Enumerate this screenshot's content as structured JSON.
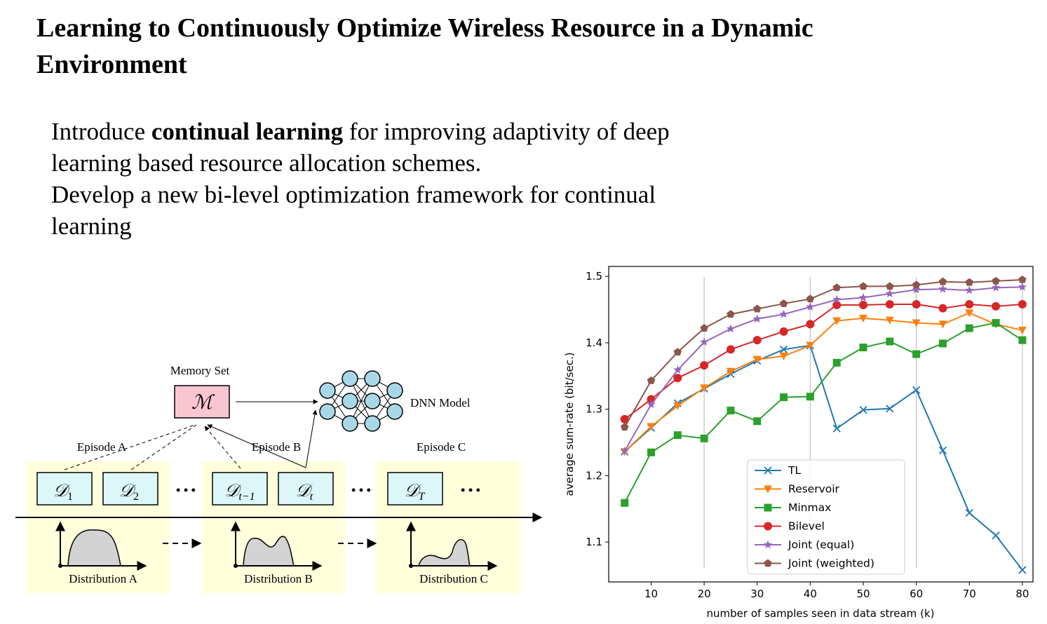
{
  "slide": {
    "title_lines": [
      "Learning to Continuously Optimize Wireless Resource in a Dynamic",
      "Environment"
    ],
    "bullet1": {
      "prefix": "Introduce ",
      "bold": "continual learning",
      "suffix": " for improving adaptivity of deep",
      "line2": "learning based resource allocation schemes."
    },
    "bullet2": {
      "line1": "Develop a new bi-level optimization framework for continual",
      "line2": "learning"
    }
  },
  "diagram": {
    "memory_label": "Memory Set",
    "memory_symbol": "ℳ",
    "dnn_label": "DNN Model",
    "episodes": [
      "Episode A",
      "Episode B",
      "Episode C"
    ],
    "boxes": [
      {
        "main": "𝒟",
        "sub": "1"
      },
      {
        "main": "𝒟",
        "sub": "2"
      },
      {
        "main": "𝒟",
        "sub": "t−1"
      },
      {
        "main": "𝒟",
        "sub": "t"
      },
      {
        "main": "𝒟",
        "sub": "T"
      }
    ],
    "ellipsis": "• • •",
    "distributions": [
      "Distribution A",
      "Distribution B",
      "Distribution C"
    ],
    "colors": {
      "episode_bg": "#ffffdc",
      "box_fill": "#ddf7f9",
      "memory_fill": "#f9c5d1",
      "neuron_fill": "#a8d8e8",
      "dist_fill": "#d3d3d3"
    }
  },
  "chart_data": {
    "type": "line",
    "xlabel": "number of samples seen in data stream (k)",
    "ylabel": "average sum-rate (bit/sec.)",
    "xlim": [
      2,
      82
    ],
    "ylim": [
      1.04,
      1.515
    ],
    "xticks": [
      10,
      20,
      30,
      40,
      50,
      60,
      70,
      80
    ],
    "yticks": [
      1.1,
      1.2,
      1.3,
      1.4,
      1.5
    ],
    "vlines": [
      20,
      40,
      60,
      80
    ],
    "x": [
      5,
      10,
      15,
      20,
      25,
      30,
      35,
      40,
      45,
      50,
      55,
      60,
      65,
      70,
      75,
      80
    ],
    "legend_position": "lower-center",
    "series": [
      {
        "name": "TL",
        "color": "#1f77b4",
        "marker": "x",
        "values": [
          1.236,
          1.272,
          1.309,
          1.331,
          1.353,
          1.373,
          1.39,
          1.396,
          1.271,
          1.299,
          1.301,
          1.329,
          1.238,
          1.144,
          1.11,
          1.058
        ]
      },
      {
        "name": "Reservoir",
        "color": "#ff7f0e",
        "marker": "v",
        "values": [
          1.236,
          1.274,
          1.305,
          1.332,
          1.357,
          1.375,
          1.38,
          1.396,
          1.433,
          1.437,
          1.434,
          1.43,
          1.428,
          1.445,
          1.428,
          1.419
        ]
      },
      {
        "name": "Minmax",
        "color": "#2ca02c",
        "marker": "s",
        "values": [
          1.159,
          1.235,
          1.261,
          1.256,
          1.298,
          1.282,
          1.318,
          1.319,
          1.37,
          1.393,
          1.402,
          1.383,
          1.399,
          1.422,
          1.43,
          1.404
        ]
      },
      {
        "name": "Bilevel",
        "color": "#d62728",
        "marker": "o",
        "values": [
          1.285,
          1.315,
          1.347,
          1.366,
          1.39,
          1.404,
          1.417,
          1.428,
          1.457,
          1.457,
          1.458,
          1.458,
          1.452,
          1.458,
          1.455,
          1.458
        ]
      },
      {
        "name": "Joint (equal)",
        "color": "#9467bd",
        "marker": "*",
        "values": [
          1.237,
          1.307,
          1.359,
          1.401,
          1.421,
          1.436,
          1.443,
          1.454,
          1.465,
          1.468,
          1.474,
          1.48,
          1.481,
          1.479,
          1.483,
          1.484
        ]
      },
      {
        "name": "Joint (weighted)",
        "color": "#8c564b",
        "marker": "p",
        "values": [
          1.273,
          1.343,
          1.386,
          1.422,
          1.443,
          1.451,
          1.459,
          1.466,
          1.483,
          1.485,
          1.485,
          1.487,
          1.492,
          1.491,
          1.493,
          1.495
        ]
      }
    ]
  }
}
